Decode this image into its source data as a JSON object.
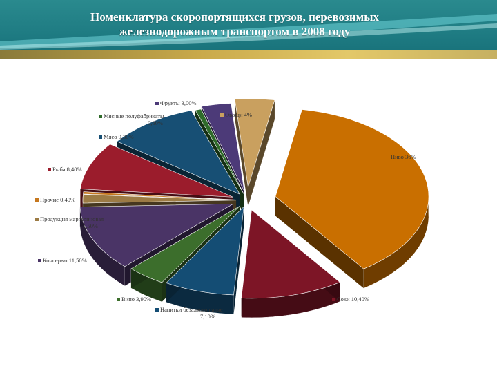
{
  "header": {
    "title_line1": "Номенклатура скоропортящихся грузов, перевозимых",
    "title_line2": "железнодорожным транспортом в 2008 году"
  },
  "chart_data": {
    "type": "pie",
    "style": "3d-exploded",
    "legend": "labels-around",
    "slices": [
      {
        "label": "Пиво 36%",
        "value": 36.0,
        "color": "#c96f00"
      },
      {
        "label": "Соки 10,40%",
        "value": 10.4,
        "color": "#7d1526"
      },
      {
        "label": "Напитки безалкогольные 7,10%",
        "value": 7.1,
        "color": "#144d74"
      },
      {
        "label": "Вино 3,90%",
        "value": 3.9,
        "color": "#3c6e2c"
      },
      {
        "label": "Консервы 11,50%",
        "value": 11.5,
        "color": "#4a3466"
      },
      {
        "label": "Продукция маргариновая 1,50%",
        "value": 1.5,
        "color": "#9c7b45"
      },
      {
        "label": "Прочие 0,40%",
        "value": 0.4,
        "color": "#c6781f"
      },
      {
        "label": "Рыба 8,40%",
        "value": 8.4,
        "color": "#9b1c2c"
      },
      {
        "label": "Мясо 9,30%",
        "value": 9.3,
        "color": "#174f74"
      },
      {
        "label": "Мясные полуфабрикаты 0,60%",
        "value": 0.6,
        "color": "#2f6b2a"
      },
      {
        "label": "Фрукты 3,00%",
        "value": 3.0,
        "color": "#4c3a78"
      },
      {
        "label": "Овощи 4%",
        "value": 4.0,
        "color": "#c9a05f"
      }
    ]
  }
}
